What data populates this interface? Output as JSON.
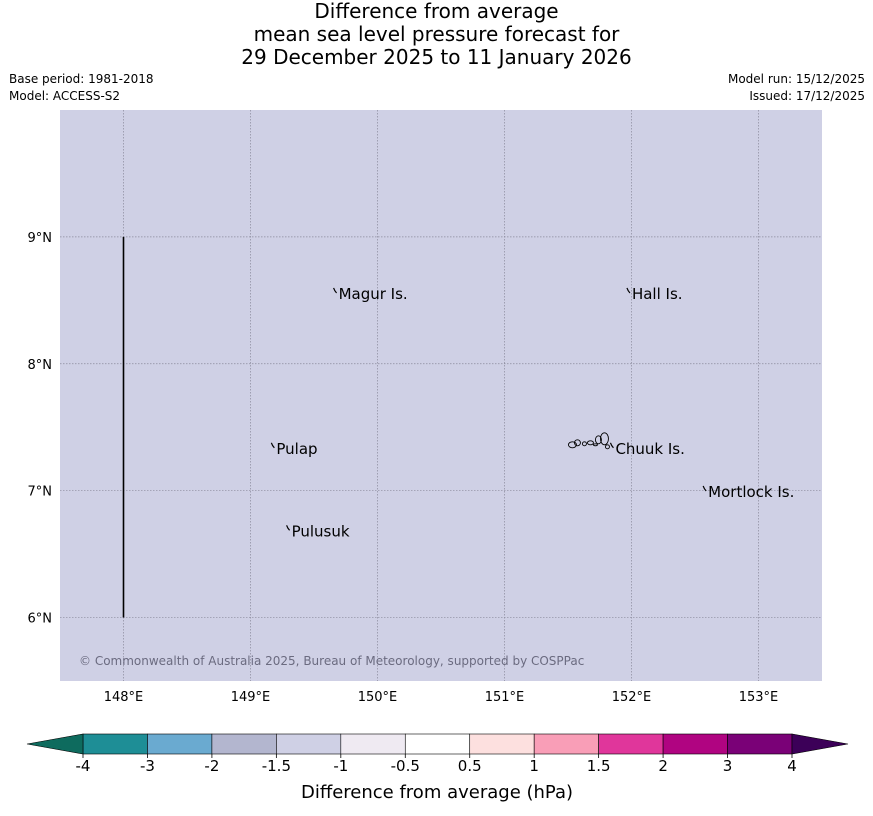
{
  "title": {
    "line1": "Difference from average",
    "line2": "mean sea level pressure forecast for",
    "line3": "29 December 2025 to 11 January 2026"
  },
  "meta": {
    "base_period": "Base period: 1981-2018",
    "model": "Model: ACCESS-S2",
    "model_run": "Model run: 15/12/2025",
    "issued": "Issued: 17/12/2025"
  },
  "map": {
    "background_color": "#cfd0e5",
    "extent": {
      "lon": [
        147.5,
        153.5
      ],
      "lat": [
        5.5,
        10.0
      ]
    },
    "lon_ticks": [
      {
        "value": 148,
        "label": "148°E"
      },
      {
        "value": 149,
        "label": "149°E"
      },
      {
        "value": 150,
        "label": "150°E"
      },
      {
        "value": 151,
        "label": "151°E"
      },
      {
        "value": 152,
        "label": "152°E"
      },
      {
        "value": 153,
        "label": "153°E"
      }
    ],
    "lat_ticks": [
      {
        "value": 9,
        "label": "9°N"
      },
      {
        "value": 8,
        "label": "8°N"
      },
      {
        "value": 7,
        "label": "7°N"
      },
      {
        "value": 6,
        "label": "6°N"
      }
    ],
    "grid": true,
    "boundary_line": {
      "lon": 148.0,
      "lat_from": 6.0,
      "lat_to": 9.0
    },
    "places": [
      {
        "name": "Magur Is.",
        "lon": 149.67,
        "lat": 8.55
      },
      {
        "name": "Hall Is.",
        "lon": 151.98,
        "lat": 8.55
      },
      {
        "name": "Pulap",
        "lon": 149.18,
        "lat": 7.33
      },
      {
        "name": "Chuuk Is.",
        "lon": 151.85,
        "lat": 7.33
      },
      {
        "name": "Mortlock Is.",
        "lon": 152.58,
        "lat": 6.99
      },
      {
        "name": "Pulusuk",
        "lon": 149.3,
        "lat": 6.68
      }
    ],
    "copyright": "© Commonwealth of Australia 2025, Bureau of Meteorology, supported by COSPPac"
  },
  "colorbar": {
    "label": "Difference from average (hPa)",
    "ticks": [
      "-4",
      "-3",
      "-2",
      "-1.5",
      "-1",
      "-0.5",
      "0.5",
      "1",
      "1.5",
      "2",
      "3",
      "4"
    ],
    "under_color": "#0e6b5e",
    "over_color": "#3c0058",
    "colors": [
      "#1e8e96",
      "#6aaad0",
      "#b3b6cf",
      "#cfd0e5",
      "#efeaf2",
      "#ffffff",
      "#fde0df",
      "#f99eb7",
      "#e0369b",
      "#b00481",
      "#7a0177"
    ]
  }
}
